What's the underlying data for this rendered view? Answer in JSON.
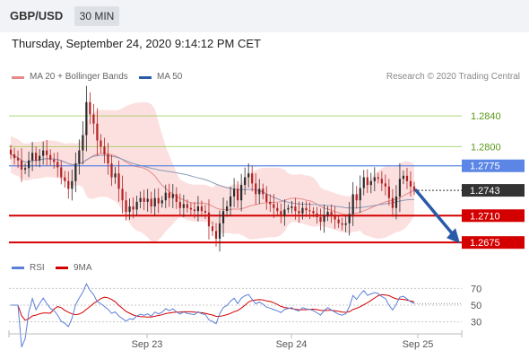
{
  "header": {
    "symbol": "GBP/USD",
    "timeframe": "30 MIN"
  },
  "datetime": "Thursday, September 24, 2020 9:14:12 PM CET",
  "legend": {
    "ma20": "MA 20 + Bollinger Bands",
    "ma50": "MA 50",
    "copyright": "Research © 2020 Trading Central",
    "rsi": "RSI",
    "ma9": "9MA"
  },
  "colors": {
    "ma20": "#e88a8a",
    "ma50": "#2a5aa8",
    "band": "#fbd6d6",
    "up": "#2b2b2b",
    "down": "#b32020",
    "support": "#d40000",
    "resistance": "#8cc63f",
    "pivot": "#5b86e5",
    "arrow": "#2a5aa8",
    "rsi": "#5b7fd6",
    "rsi_ma": "#d40000"
  },
  "chart_data": [
    {
      "type": "candlestick",
      "title": "GBP/USD",
      "timeframe": "30 MIN",
      "x_labels": [
        "Sep 23",
        "Sep 24",
        "Sep 25"
      ],
      "ylim": [
        1.266,
        1.288
      ],
      "levels": [
        {
          "value": 1.284,
          "label": "1.2840",
          "kind": "resistance"
        },
        {
          "value": 1.28,
          "label": "1.2800",
          "kind": "resistance"
        },
        {
          "value": 1.2775,
          "label": "1.2775",
          "kind": "pivot"
        },
        {
          "value": 1.2743,
          "label": "1.2743",
          "kind": "last"
        },
        {
          "value": 1.271,
          "label": "1.2710",
          "kind": "support"
        },
        {
          "value": 1.2675,
          "label": "1.2675",
          "kind": "support"
        }
      ],
      "last_price": 1.2743,
      "projection": {
        "from": 1.2743,
        "to": 1.2675
      },
      "close": [
        1.279,
        1.2785,
        1.2782,
        1.277,
        1.2772,
        1.2782,
        1.2792,
        1.2782,
        1.2788,
        1.2795,
        1.2789,
        1.2783,
        1.278,
        1.2773,
        1.276,
        1.2755,
        1.2745,
        1.2755,
        1.2778,
        1.2795,
        1.2815,
        1.2858,
        1.2842,
        1.283,
        1.2808,
        1.28,
        1.279,
        1.2778,
        1.276,
        1.2765,
        1.2745,
        1.273,
        1.2715,
        1.2722,
        1.2718,
        1.2728,
        1.2733,
        1.2728,
        1.2732,
        1.2722,
        1.2733,
        1.2726,
        1.273,
        1.274,
        1.2733,
        1.2738,
        1.2728,
        1.272,
        1.2725,
        1.272,
        1.2718,
        1.2716,
        1.2722,
        1.2716,
        1.2714,
        1.2696,
        1.269,
        1.268,
        1.27,
        1.2716,
        1.2722,
        1.2735,
        1.2745,
        1.273,
        1.275,
        1.276,
        1.2765,
        1.2752,
        1.2738,
        1.2745,
        1.2738,
        1.2728,
        1.2725,
        1.272,
        1.2716,
        1.271,
        1.2718,
        1.272,
        1.2722,
        1.2716,
        1.2713,
        1.272,
        1.2717,
        1.2716,
        1.2713,
        1.2708,
        1.2702,
        1.271,
        1.2715,
        1.271,
        1.2705,
        1.27,
        1.2698,
        1.27,
        1.2712,
        1.2738,
        1.273,
        1.2746,
        1.276,
        1.275,
        1.2755,
        1.276,
        1.2758,
        1.2752,
        1.2748,
        1.2733,
        1.272,
        1.2735,
        1.2758,
        1.2762,
        1.2755,
        1.2748,
        1.2743
      ],
      "series": [
        {
          "name": "MA 20 + Bollinger Bands"
        },
        {
          "name": "MA 50"
        }
      ]
    },
    {
      "type": "line",
      "title": "RSI",
      "ylim": [
        20,
        80
      ],
      "y_ticks": [
        70,
        50,
        30
      ],
      "series": [
        {
          "name": "RSI"
        },
        {
          "name": "9MA"
        }
      ]
    }
  ]
}
